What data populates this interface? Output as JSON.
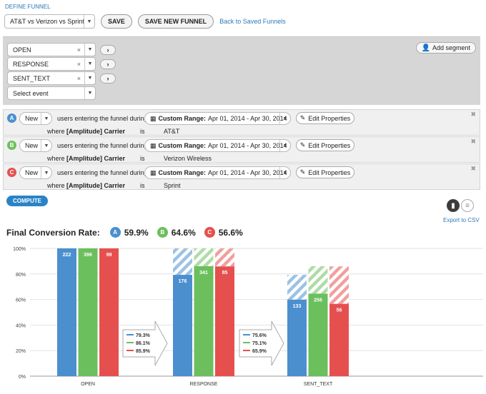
{
  "header": {
    "define_funnel": "DEFINE FUNNEL",
    "funnel_select": "AT&T vs Verizon vs Sprint",
    "save": "SAVE",
    "save_new": "SAVE NEW FUNNEL",
    "back_link": "Back to Saved Funnels"
  },
  "events": [
    {
      "label": "OPEN"
    },
    {
      "label": "RESPONSE"
    },
    {
      "label": "SENT_TEXT"
    }
  ],
  "event_placeholder": "Select event",
  "add_segment": "Add segment",
  "segments": [
    {
      "letter": "A",
      "color": "#4b8fcf",
      "user_type": "New",
      "text": "users entering the funnel during",
      "range_label": "Custom Range:",
      "range_value": "Apr 01, 2014 - Apr 30, 2014",
      "edit_label": "Edit Properties",
      "where": "where",
      "property": "[Amplitude] Carrier",
      "operator": "is",
      "value": "AT&T"
    },
    {
      "letter": "B",
      "color": "#6cbf5d",
      "user_type": "New",
      "text": "users entering the funnel during",
      "range_label": "Custom Range:",
      "range_value": "Apr 01, 2014 - Apr 30, 2014",
      "edit_label": "Edit Properties",
      "where": "where",
      "property": "[Amplitude] Carrier",
      "operator": "is",
      "value": "Verizon Wireless"
    },
    {
      "letter": "C",
      "color": "#e5504f",
      "user_type": "New",
      "text": "users entering the funnel during",
      "range_label": "Custom Range:",
      "range_value": "Apr 01, 2014 - Apr 30, 2014",
      "edit_label": "Edit Properties",
      "where": "where",
      "property": "[Amplitude] Carrier",
      "operator": "is",
      "value": "Sprint"
    }
  ],
  "compute": "COMPUTE",
  "export_csv": "Export to CSV",
  "final_conversion": {
    "label": "Final Conversion Rate:",
    "items": [
      {
        "letter": "A",
        "value": "59.9%",
        "color": "#4b8fcf"
      },
      {
        "letter": "B",
        "value": "64.6%",
        "color": "#6cbf5d"
      },
      {
        "letter": "C",
        "value": "56.6%",
        "color": "#e5504f"
      }
    ]
  },
  "chart_data": {
    "type": "bar",
    "categories": [
      "OPEN",
      "RESPONSE",
      "SENT_TEXT"
    ],
    "y_ticks": [
      "0%",
      "20%",
      "40%",
      "60%",
      "80%",
      "100%"
    ],
    "ylim": [
      0,
      100
    ],
    "colors": [
      "#4b8fcf",
      "#6cbf5d",
      "#e5504f"
    ],
    "series": [
      {
        "values": [
          100,
          79.3,
          59.9
        ],
        "counts": [
          "222",
          "176",
          "133"
        ],
        "dropoff_base": [
          null,
          100,
          79.3
        ]
      },
      {
        "values": [
          100,
          86.1,
          64.6
        ],
        "counts": [
          "396",
          "341",
          "256"
        ],
        "dropoff_base": [
          null,
          100,
          86.1
        ]
      },
      {
        "values": [
          100,
          85.9,
          56.6
        ],
        "counts": [
          "99",
          "85",
          "56"
        ],
        "dropoff_base": [
          null,
          100,
          85.9
        ]
      }
    ],
    "step_conversions": [
      [
        "79.3%",
        "86.1%",
        "85.9%"
      ],
      [
        "75.6%",
        "75.1%",
        "65.9%"
      ]
    ]
  }
}
